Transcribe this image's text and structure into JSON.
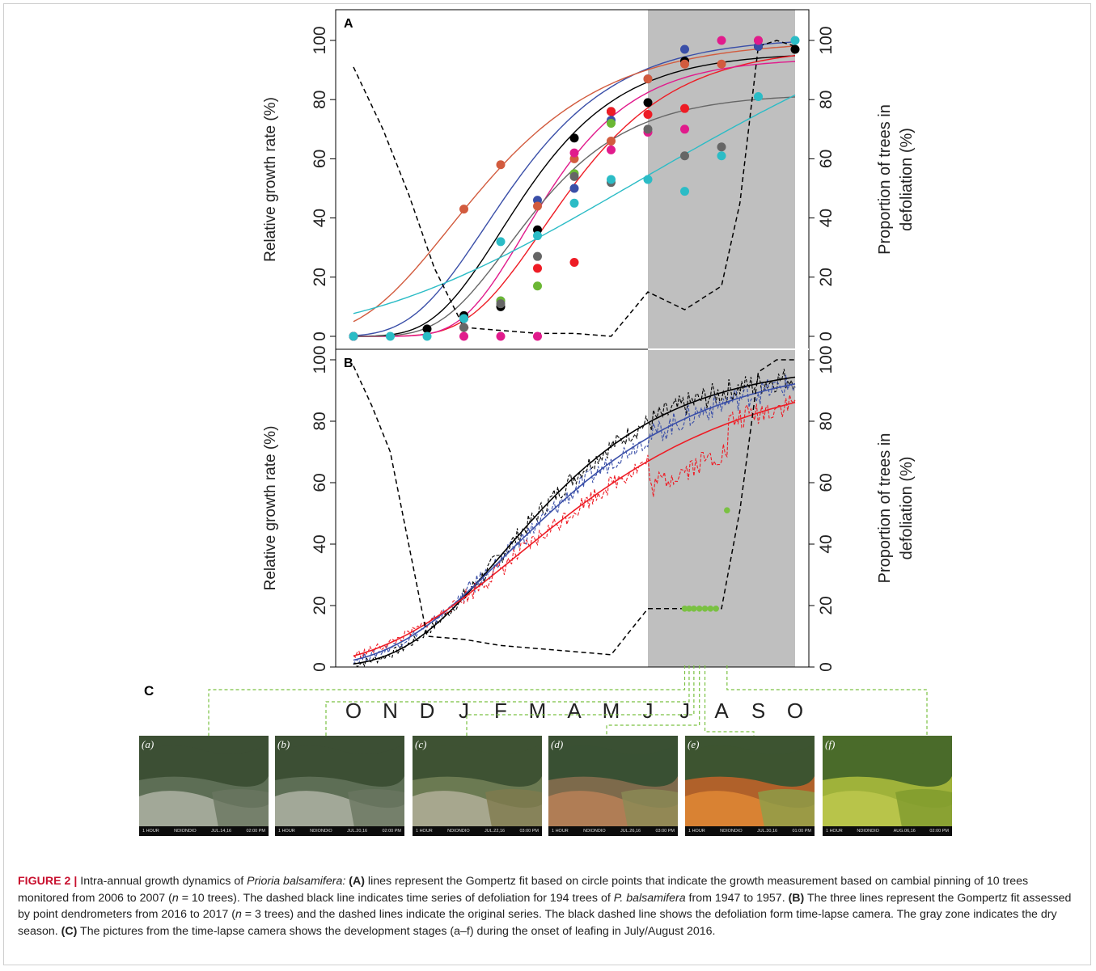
{
  "figure": {
    "panel_c_label": "C",
    "caption_parts": {
      "fig_label": "FIGURE 2 |",
      "t1": " Intra-annual growth dynamics of ",
      "species": "Prioria balsamifera:",
      "a_tag": " (A)",
      "t2": " lines represent the Gompertz fit based on circle points that indicate the growth measurement based on cambial pinning of 10 trees monitored from 2006 to 2007 (",
      "n1": "n",
      "t3": " = 10 trees). The dashed black line indicates time series of defoliation for 194 trees of ",
      "species_short": "P. balsamifera",
      "t4": " from 1947 to 1957.",
      "b_tag": " (B)",
      "t5": " The three lines represent the Gompertz fit assessed by point dendrometers from 2016 to 2017 (",
      "n2": "n",
      "t6": " = 3 trees) and the dashed lines indicate the original series. The black dashed line shows the defoliation form time-lapse camera. The gray zone indicates the dry season.",
      "c_tag": " (C)",
      "t7": " The pictures from the time-lapse camera shows the development stages (a–f) during the onset of leafing in July/August 2016."
    },
    "photos": [
      {
        "label": "(a)",
        "left_text": "1 HOUR",
        "mid_text": "NDIONDIO",
        "date": "JUL.14,16",
        "time": "02:00 PM",
        "stage": "bare",
        "x_label": "J"
      },
      {
        "label": "(b)",
        "left_text": "1 HOUR",
        "mid_text": "NDIONDIO",
        "date": "JUL.20,16",
        "time": "02:00 PM",
        "stage": "bare",
        "x_label": "J"
      },
      {
        "label": "(c)",
        "left_text": "1 HOUR",
        "mid_text": "NDIONDIO",
        "date": "JUL.22,16",
        "time": "03:00 PM",
        "stage": "budding",
        "x_label": "J"
      },
      {
        "label": "(d)",
        "left_text": "1 HOUR",
        "mid_text": "NDIONDIO",
        "date": "JUL.26,16",
        "time": "03:00 PM",
        "stage": "flushing",
        "x_label": "J"
      },
      {
        "label": "(e)",
        "left_text": "1 HOUR",
        "mid_text": "NDIONDIO",
        "date": "JUL.30,16",
        "time": "01:00 PM",
        "stage": "orange",
        "x_label": "A"
      },
      {
        "label": "(f)",
        "left_text": "1 HOUR",
        "mid_text": "NDIONDIO",
        "date": "AUG.06,16",
        "time": "02:00 PM",
        "stage": "green",
        "x_label": "A"
      }
    ]
  },
  "chart_data": [
    {
      "panel": "A",
      "type": "scatter",
      "x_categories": [
        "O",
        "N",
        "D",
        "J",
        "F",
        "M",
        "A",
        "M",
        "J",
        "J",
        "A",
        "S",
        "O"
      ],
      "ylabel": "Relative growth rate (%)",
      "y2label_line1": "Proportion of trees in",
      "y2label_line2": "defoliation (%)",
      "ylim": [
        0,
        100
      ],
      "yticks": [
        0,
        20,
        40,
        60,
        80,
        100
      ],
      "dry_season": [
        8,
        12
      ],
      "series": [
        {
          "color": "#000000",
          "points": [
            [
              0,
              0
            ],
            [
              2,
              2.5
            ],
            [
              3,
              7
            ],
            [
              4,
              10
            ],
            [
              5,
              36
            ],
            [
              6,
              67
            ],
            [
              7,
              76
            ],
            [
              8,
              79
            ],
            [
              9,
              93
            ],
            [
              11,
              98
            ],
            [
              12,
              97
            ]
          ],
          "fit": {
            "a": 96,
            "b": 9,
            "c": 0.55
          }
        },
        {
          "color": "#3a4fa8",
          "points": [
            [
              3,
              6
            ],
            [
              4,
              12
            ],
            [
              5,
              46
            ],
            [
              6,
              50
            ],
            [
              7,
              73
            ],
            [
              8,
              87
            ],
            [
              9,
              97
            ],
            [
              11,
              98
            ]
          ],
          "fit": {
            "a": 101,
            "b": 6,
            "c": 0.5
          }
        },
        {
          "color": "#d25b3e",
          "points": [
            [
              3,
              43
            ],
            [
              4,
              58
            ],
            [
              5,
              44
            ],
            [
              6,
              60
            ],
            [
              7,
              66
            ],
            [
              8,
              87
            ],
            [
              9,
              92
            ],
            [
              10,
              92
            ],
            [
              11,
              100
            ]
          ],
          "fit": {
            "a": 100,
            "b": 3.0,
            "c": 0.42
          }
        },
        {
          "color": "#ee1c25",
          "points": [
            [
              0,
              0
            ],
            [
              3,
              3
            ],
            [
              5,
              23
            ],
            [
              6,
              25
            ],
            [
              7,
              76
            ],
            [
              8,
              75
            ],
            [
              9,
              77
            ]
          ],
          "fit": {
            "a": 98,
            "b": 13,
            "c": 0.5
          }
        },
        {
          "color": "#e11b8c",
          "points": [
            [
              0,
              0
            ],
            [
              3,
              0
            ],
            [
              4,
              0
            ],
            [
              5,
              0
            ],
            [
              6,
              62
            ],
            [
              7,
              63
            ],
            [
              8,
              69
            ],
            [
              9,
              70
            ],
            [
              10,
              100
            ],
            [
              11,
              100
            ]
          ],
          "fit": {
            "a": 94,
            "b": 16,
            "c": 0.6
          }
        },
        {
          "color": "#6bb734",
          "points": [
            [
              4,
              12
            ],
            [
              5,
              17
            ],
            [
              6,
              55
            ],
            [
              7,
              72
            ]
          ],
          "fit": null
        },
        {
          "color": "#666666",
          "points": [
            [
              3,
              3
            ],
            [
              4,
              11
            ],
            [
              5,
              27
            ],
            [
              6,
              54
            ],
            [
              7,
              52
            ],
            [
              8,
              70
            ],
            [
              9,
              61
            ],
            [
              10,
              64
            ]
          ],
          "fit": {
            "a": 82,
            "b": 10,
            "c": 0.55
          }
        },
        {
          "color": "#2bbcc6",
          "points": [
            [
              0,
              0
            ],
            [
              1,
              0
            ],
            [
              2,
              0
            ],
            [
              3,
              6
            ],
            [
              4,
              32
            ],
            [
              5,
              34
            ],
            [
              6,
              45
            ],
            [
              7,
              53
            ],
            [
              8,
              53
            ],
            [
              9,
              49
            ],
            [
              10,
              61
            ],
            [
              11,
              81
            ],
            [
              12,
              100
            ]
          ],
          "fit": {
            "a": 140,
            "b": 2.9,
            "c": 0.14
          }
        }
      ],
      "defoliation": {
        "x": [
          0,
          0.8,
          1.5,
          2.2,
          3,
          4,
          5,
          6,
          7,
          8,
          8.5,
          9,
          10,
          10.5,
          11,
          11.5,
          12
        ],
        "y": [
          91,
          70,
          48,
          23,
          3,
          2,
          1,
          1,
          0,
          15,
          12,
          9,
          17,
          45,
          98,
          100,
          98
        ]
      }
    },
    {
      "panel": "B",
      "type": "line",
      "x_categories": [
        "O",
        "N",
        "D",
        "J",
        "F",
        "M",
        "A",
        "M",
        "J",
        "J",
        "A",
        "S",
        "O"
      ],
      "ylabel": "Relative growth rate (%)",
      "y2label_line1": "Proportion of trees in",
      "y2label_line2": "defoliation (%)",
      "ylim": [
        0,
        100
      ],
      "yticks": [
        0,
        20,
        40,
        60,
        80,
        100
      ],
      "dry_season": [
        8,
        12
      ],
      "fits": [
        {
          "color": "#000000",
          "a": 99,
          "b": 4.6,
          "c": 0.38
        },
        {
          "color": "#3a4fa8",
          "a": 100,
          "b": 3.8,
          "c": 0.32
        },
        {
          "color": "#ee1c25",
          "a": 98,
          "b": 3.3,
          "c": 0.27
        }
      ],
      "defoliation": {
        "x": [
          0,
          0.5,
          1,
          1.5,
          2,
          3,
          4,
          5,
          6,
          7,
          8,
          9,
          9.5,
          10,
          10.5,
          11,
          11.5,
          12
        ],
        "y": [
          98,
          85,
          70,
          40,
          10,
          9,
          7,
          6,
          5,
          4,
          19,
          19,
          19,
          19,
          51,
          96,
          100,
          100
        ]
      },
      "camera_points": {
        "x": [
          9.0,
          9.12,
          9.25,
          9.4,
          9.55,
          9.7,
          9.85,
          10.15
        ],
        "y": [
          19,
          19,
          19,
          19,
          19,
          19,
          19,
          51
        ]
      }
    }
  ]
}
